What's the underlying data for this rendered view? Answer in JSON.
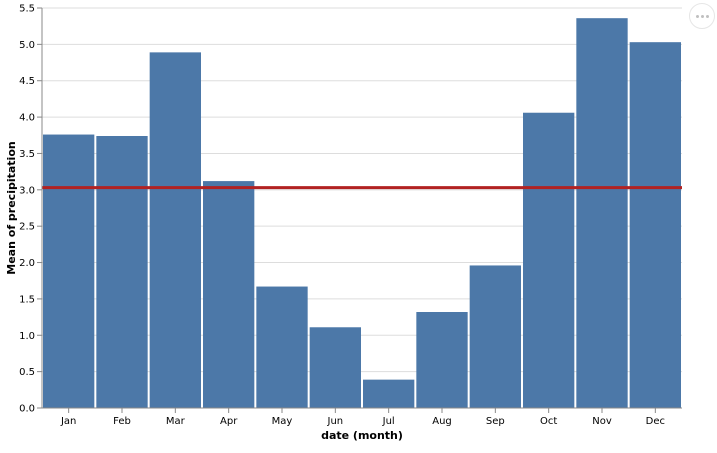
{
  "chart_data": {
    "type": "bar",
    "categories": [
      "Jan",
      "Feb",
      "Mar",
      "Apr",
      "May",
      "Jun",
      "Jul",
      "Aug",
      "Sep",
      "Oct",
      "Nov",
      "Dec"
    ],
    "values": [
      3.76,
      3.74,
      4.89,
      3.12,
      1.67,
      1.11,
      0.39,
      1.32,
      1.96,
      4.06,
      5.36,
      5.03
    ],
    "mean_rule": 3.03,
    "xlabel": "date (month)",
    "ylabel": "Mean of precipitation",
    "ylim": [
      0,
      5.5
    ],
    "yticks": [
      "0.0",
      "0.5",
      "1.0",
      "1.5",
      "2.0",
      "2.5",
      "3.0",
      "3.5",
      "4.0",
      "4.5",
      "5.0",
      "5.5"
    ],
    "grid": true,
    "colors": {
      "bar": "#4c78a8",
      "rule": "#b22222",
      "grid": "#dddddd",
      "axis": "#888888"
    }
  },
  "actions": {
    "icon": "more-horizontal-icon"
  }
}
